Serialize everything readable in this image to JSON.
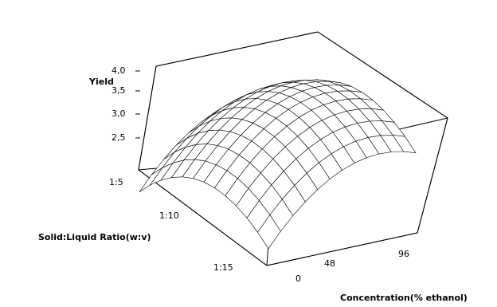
{
  "chart_data": {
    "type": "surface",
    "title": "",
    "zlabel": "Yield",
    "ylabel": "Solid:Liquid Ratio(w:v)",
    "xlabel": "Concentration(% ethanol)",
    "z_ticks": [
      "4,0",
      "3,5",
      "3,0",
      "2,5"
    ],
    "ratio_ticks": [
      "1:5",
      "1:10",
      "1:15"
    ],
    "conc_ticks": [
      "0",
      "48",
      "96"
    ],
    "conc_range": [
      0,
      96
    ],
    "ratio_range": [
      "1:5",
      "1:15"
    ],
    "z_range": [
      2.2,
      4.0
    ],
    "surface": {
      "description_points": [
        {
          "concentration": 0,
          "ratio": "1:5",
          "yield": 2.4
        },
        {
          "concentration": 0,
          "ratio": "1:15",
          "yield": 2.3
        },
        {
          "concentration": 96,
          "ratio": "1:5",
          "yield": 2.3
        },
        {
          "concentration": 96,
          "ratio": "1:15",
          "yield": 2.2
        },
        {
          "concentration": 48,
          "ratio": "1:10",
          "yield": 3.1
        }
      ],
      "grid": 12
    },
    "grid": false,
    "legend": "none",
    "background": "#ECE9D8",
    "plot_background": "#FFFFFF"
  }
}
